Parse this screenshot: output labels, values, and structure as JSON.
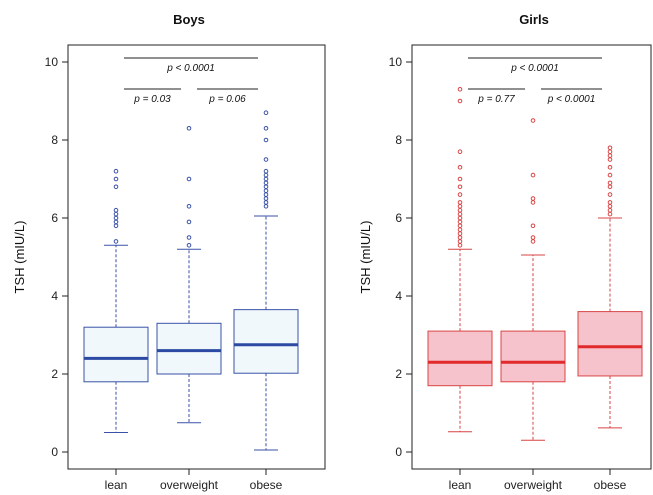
{
  "chart_data": [
    {
      "type": "box",
      "title": "Boys",
      "xlabel": "",
      "ylabel": "TSH (mIU/L)",
      "ylim": [
        -0.2,
        10.4
      ],
      "yticks": [
        0,
        2,
        4,
        6,
        8,
        10
      ],
      "categories": [
        "lean",
        "overweight",
        "obese"
      ],
      "colors": {
        "stroke": "#3a52a8",
        "fill": "#f1f8fb",
        "median": "#2c4aa3"
      },
      "boxes": [
        {
          "q1": 1.8,
          "median": 2.4,
          "q3": 3.2,
          "whisker_low": 0.5,
          "whisker_high": 5.3,
          "outliers": [
            5.4,
            5.8,
            5.9,
            6.0,
            6.1,
            6.2,
            6.8,
            7.0,
            7.2
          ]
        },
        {
          "q1": 2.0,
          "median": 2.6,
          "q3": 3.3,
          "whisker_low": 0.75,
          "whisker_high": 5.2,
          "outliers": [
            5.3,
            5.5,
            5.9,
            6.3,
            7.0,
            8.3
          ]
        },
        {
          "q1": 2.02,
          "median": 2.75,
          "q3": 3.65,
          "whisker_low": 0.05,
          "whisker_high": 6.05,
          "outliers": [
            6.3,
            6.4,
            6.5,
            6.6,
            6.7,
            6.8,
            6.9,
            7.0,
            7.1,
            7.2,
            7.5,
            8.0,
            8.3,
            8.7
          ]
        }
      ],
      "comparisons": [
        {
          "from": 0,
          "to": 2,
          "level": 1,
          "label": "p < 0.0001"
        },
        {
          "from": 0,
          "to": 1,
          "level": 0,
          "label": "p = 0.03"
        },
        {
          "from": 1,
          "to": 2,
          "level": 0,
          "label": "p = 0.06"
        }
      ]
    },
    {
      "type": "box",
      "title": "Girls",
      "xlabel": "",
      "ylabel": "TSH (mIU/L)",
      "ylim": [
        -0.2,
        10.4
      ],
      "yticks": [
        0,
        2,
        4,
        6,
        8,
        10
      ],
      "categories": [
        "lean",
        "overweight",
        "obese"
      ],
      "colors": {
        "stroke": "#d94545",
        "fill": "#f6c3cc",
        "median": "#e12b2b"
      },
      "boxes": [
        {
          "q1": 1.7,
          "median": 2.3,
          "q3": 3.1,
          "whisker_low": 0.52,
          "whisker_high": 5.2,
          "outliers": [
            5.3,
            5.4,
            5.5,
            5.6,
            5.7,
            5.8,
            5.9,
            6.0,
            6.1,
            6.2,
            6.3,
            6.4,
            6.6,
            6.8,
            7.0,
            7.3,
            7.7,
            9.0,
            9.3
          ]
        },
        {
          "q1": 1.8,
          "median": 2.3,
          "q3": 3.1,
          "whisker_low": 0.3,
          "whisker_high": 5.05,
          "outliers": [
            5.4,
            5.5,
            5.8,
            6.4,
            6.5,
            7.1,
            8.5
          ]
        },
        {
          "q1": 1.95,
          "median": 2.7,
          "q3": 3.6,
          "whisker_low": 0.62,
          "whisker_high": 6.0,
          "outliers": [
            6.1,
            6.2,
            6.3,
            6.4,
            6.6,
            6.8,
            6.9,
            7.1,
            7.3,
            7.5,
            7.6,
            7.7,
            7.8
          ]
        }
      ],
      "comparisons": [
        {
          "from": 0,
          "to": 2,
          "level": 1,
          "label": "p < 0.0001"
        },
        {
          "from": 0,
          "to": 1,
          "level": 0,
          "label": "p = 0.77"
        },
        {
          "from": 1,
          "to": 2,
          "level": 0,
          "label": "p < 0.0001"
        }
      ]
    }
  ]
}
